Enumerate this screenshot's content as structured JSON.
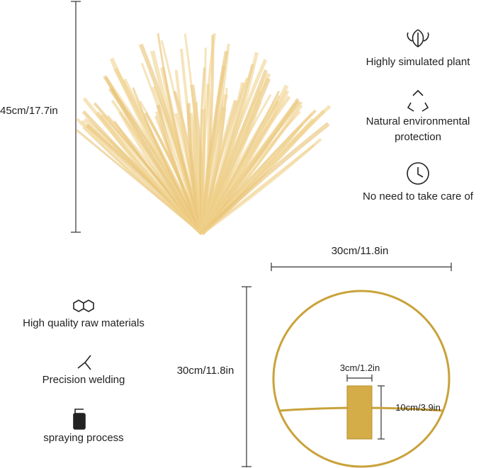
{
  "plant_height": "45cm/17.7in",
  "features_top": [
    {
      "label": "Highly simulated plant"
    },
    {
      "label": "Natural environmental protection"
    },
    {
      "label": "No need to take care of"
    }
  ],
  "holder": {
    "width": "30cm/11.8in",
    "height": "30cm/11.8in",
    "cup_width": "3cm/1.2in",
    "cup_height": "10cm/3.9in"
  },
  "features_bottom": [
    {
      "label": "High quality raw materials"
    },
    {
      "label": "Precision welding"
    },
    {
      "label": "spraying process"
    }
  ]
}
